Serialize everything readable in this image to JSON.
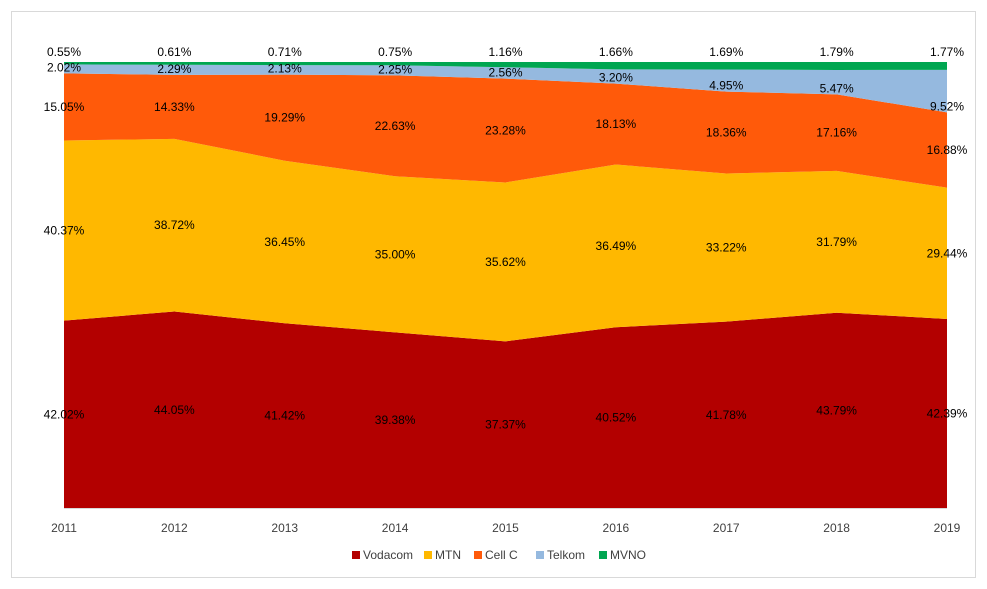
{
  "chart_data": {
    "type": "area",
    "stacked": true,
    "percent": true,
    "categories": [
      "2011",
      "2012",
      "2013",
      "2014",
      "2015",
      "2016",
      "2017",
      "2018",
      "2019"
    ],
    "series": [
      {
        "name": "Vodacom",
        "color": "#b30000",
        "values": [
          42.02,
          44.05,
          41.42,
          39.38,
          37.37,
          40.52,
          41.78,
          43.79,
          42.39
        ],
        "labels": [
          "42.02%",
          "44.05%",
          "41.42%",
          "39.38%",
          "37.37%",
          "40.52%",
          "41.78%",
          "43.79%",
          "42.39%"
        ]
      },
      {
        "name": "MTN",
        "color": "#ffb800",
        "values": [
          40.37,
          38.72,
          36.45,
          35.0,
          35.62,
          36.49,
          33.22,
          31.79,
          29.44
        ],
        "labels": [
          "40.37%",
          "38.72%",
          "36.45%",
          "35.00%",
          "35.62%",
          "36.49%",
          "33.22%",
          "31.79%",
          "29.44%"
        ]
      },
      {
        "name": "Cell C",
        "color": "#ff5a0a",
        "values": [
          15.05,
          14.33,
          19.29,
          22.63,
          23.28,
          18.13,
          18.36,
          17.16,
          16.88
        ],
        "labels": [
          "15.05%",
          "14.33%",
          "19.29%",
          "22.63%",
          "23.28%",
          "18.13%",
          "18.36%",
          "17.16%",
          "16.88%"
        ]
      },
      {
        "name": "Telkom",
        "color": "#95b9df",
        "values": [
          2.02,
          2.29,
          2.13,
          2.25,
          2.56,
          3.2,
          4.95,
          5.47,
          9.52
        ],
        "labels": [
          "2.02%",
          "2.29%",
          "2.13%",
          "2.25%",
          "2.56%",
          "3.20%",
          "4.95%",
          "5.47%",
          "9.52%"
        ]
      },
      {
        "name": "MVNO",
        "color": "#00a651",
        "values": [
          0.55,
          0.61,
          0.71,
          0.75,
          1.16,
          1.66,
          1.69,
          1.79,
          1.77
        ],
        "labels": [
          "0.55%",
          "0.61%",
          "0.71%",
          "0.75%",
          "1.16%",
          "1.66%",
          "1.69%",
          "1.79%",
          "1.77%"
        ]
      }
    ],
    "ylim": [
      0,
      100
    ],
    "grid": false,
    "legend": "bottom"
  }
}
